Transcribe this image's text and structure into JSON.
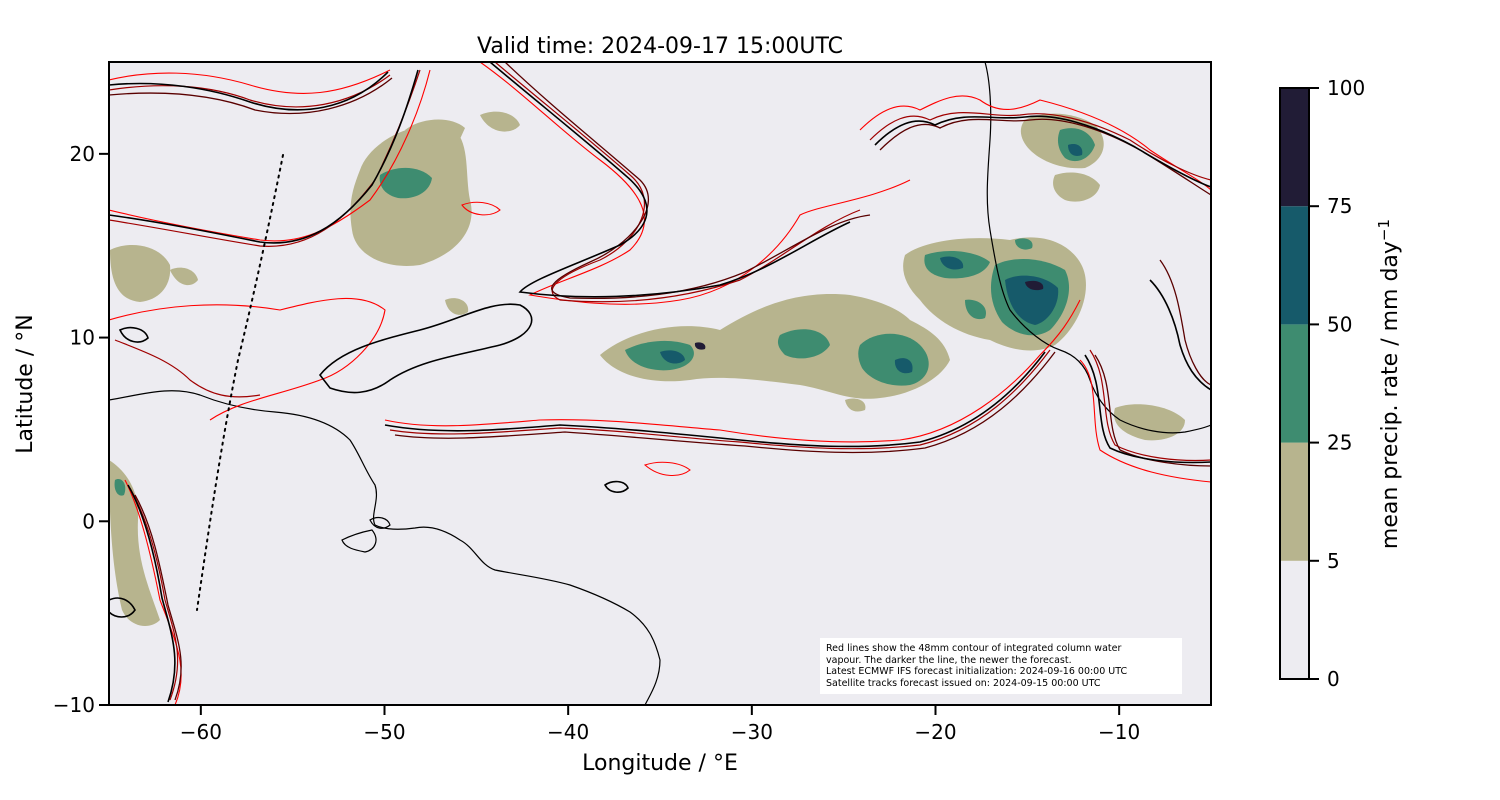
{
  "title": "Valid time: 2024-09-17 15:00UTC",
  "map": {
    "xlabel": "Longitude / °E",
    "ylabel": "Latitude / °N",
    "xlim": [
      -65,
      -5
    ],
    "ylim": [
      -10,
      25
    ],
    "x_ticks": [
      -60,
      -50,
      -40,
      -30,
      -20,
      -10
    ],
    "x_tick_labels": [
      "−60",
      "−50",
      "−40",
      "−30",
      "−20",
      "−10"
    ],
    "y_ticks": [
      20,
      10,
      0,
      -10
    ],
    "y_tick_labels": [
      "20",
      "10",
      "0",
      "−10"
    ],
    "background_color": "#edecf1",
    "contour_colors": {
      "newest": "#000000",
      "mid": "#5a0000",
      "older": "#a00000",
      "oldest": "#ff0000"
    },
    "satellite_track": "dotted black line"
  },
  "note": {
    "lines": [
      "Red lines show the 48mm contour of integrated column water",
      "vapour. The darker the line, the newer the forecast.",
      "Latest ECMWF IFS forecast initialization: 2024-09-16 00:00 UTC",
      "Satellite tracks forecast issued on: 2024-09-15 00:00 UTC"
    ]
  },
  "colorbar": {
    "label": "mean precip. rate / mm day",
    "label_exponent": "−1",
    "ticks": [
      "0",
      "5",
      "25",
      "50",
      "75",
      "100"
    ],
    "tick_values": [
      0,
      5,
      25,
      50,
      75,
      100
    ],
    "colors": [
      "#edecf1",
      "#b7b48e",
      "#3e8c70",
      "#165a6a",
      "#211c36"
    ]
  }
}
